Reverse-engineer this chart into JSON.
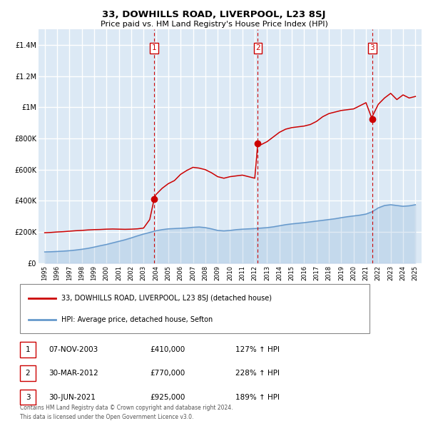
{
  "title": "33, DOWHILLS ROAD, LIVERPOOL, L23 8SJ",
  "subtitle": "Price paid vs. HM Land Registry's House Price Index (HPI)",
  "xlim": [
    1994.5,
    2025.5
  ],
  "ylim": [
    0,
    1500000
  ],
  "yticks": [
    0,
    200000,
    400000,
    600000,
    800000,
    1000000,
    1200000,
    1400000
  ],
  "ytick_labels": [
    "£0",
    "£200K",
    "£400K",
    "£600K",
    "£800K",
    "£1M",
    "£1.2M",
    "£1.4M"
  ],
  "xticks": [
    1995,
    1996,
    1997,
    1998,
    1999,
    2000,
    2001,
    2002,
    2003,
    2004,
    2005,
    2006,
    2007,
    2008,
    2009,
    2010,
    2011,
    2012,
    2013,
    2014,
    2015,
    2016,
    2017,
    2018,
    2019,
    2020,
    2021,
    2022,
    2023,
    2024,
    2025
  ],
  "background_color": "#dce9f5",
  "grid_color": "#ffffff",
  "sale_color": "#cc0000",
  "hpi_color": "#6699cc",
  "sale_dates": [
    2003.854,
    2012.247,
    2021.497
  ],
  "sale_prices": [
    410000,
    770000,
    925000
  ],
  "sale_labels": [
    "1",
    "2",
    "3"
  ],
  "vline_dates": [
    2003.854,
    2012.247,
    2021.497
  ],
  "legend_label_sale": "33, DOWHILLS ROAD, LIVERPOOL, L23 8SJ (detached house)",
  "legend_label_hpi": "HPI: Average price, detached house, Sefton",
  "table_rows": [
    {
      "num": "1",
      "date": "07-NOV-2003",
      "price": "£410,000",
      "hpi": "127% ↑ HPI"
    },
    {
      "num": "2",
      "date": "30-MAR-2012",
      "price": "£770,000",
      "hpi": "228% ↑ HPI"
    },
    {
      "num": "3",
      "date": "30-JUN-2021",
      "price": "£925,000",
      "hpi": "189% ↑ HPI"
    }
  ],
  "footer": "Contains HM Land Registry data © Crown copyright and database right 2024.\nThis data is licensed under the Open Government Licence v3.0.",
  "sale_line_data_x": [
    1995.0,
    1995.5,
    1996.0,
    1996.5,
    1997.0,
    1997.5,
    1998.0,
    1998.5,
    1999.0,
    1999.5,
    2000.0,
    2000.5,
    2001.0,
    2001.5,
    2002.0,
    2002.5,
    2003.0,
    2003.5,
    2003.854,
    2004.0,
    2004.5,
    2005.0,
    2005.5,
    2006.0,
    2006.5,
    2007.0,
    2007.5,
    2008.0,
    2008.5,
    2009.0,
    2009.5,
    2010.0,
    2010.5,
    2011.0,
    2011.5,
    2012.0,
    2012.247,
    2012.5,
    2013.0,
    2013.5,
    2014.0,
    2014.5,
    2015.0,
    2015.5,
    2016.0,
    2016.5,
    2017.0,
    2017.5,
    2018.0,
    2018.5,
    2019.0,
    2019.5,
    2020.0,
    2020.5,
    2021.0,
    2021.497,
    2021.5,
    2022.0,
    2022.5,
    2023.0,
    2023.5,
    2024.0,
    2024.5,
    2025.0
  ],
  "sale_line_data_y": [
    195000,
    197000,
    200000,
    202000,
    205000,
    208000,
    210000,
    213000,
    215000,
    216000,
    218000,
    219000,
    218000,
    217000,
    218000,
    220000,
    225000,
    280000,
    410000,
    440000,
    480000,
    510000,
    530000,
    570000,
    595000,
    615000,
    610000,
    600000,
    580000,
    555000,
    545000,
    555000,
    560000,
    565000,
    555000,
    545000,
    770000,
    760000,
    780000,
    810000,
    840000,
    860000,
    870000,
    875000,
    880000,
    890000,
    910000,
    940000,
    960000,
    970000,
    980000,
    985000,
    990000,
    1010000,
    1030000,
    925000,
    940000,
    1020000,
    1060000,
    1090000,
    1050000,
    1080000,
    1060000,
    1070000
  ],
  "hpi_line_data_x": [
    1995.0,
    1995.5,
    1996.0,
    1996.5,
    1997.0,
    1997.5,
    1998.0,
    1998.5,
    1999.0,
    1999.5,
    2000.0,
    2000.5,
    2001.0,
    2001.5,
    2002.0,
    2002.5,
    2003.0,
    2003.5,
    2004.0,
    2004.5,
    2005.0,
    2005.5,
    2006.0,
    2006.5,
    2007.0,
    2007.5,
    2008.0,
    2008.5,
    2009.0,
    2009.5,
    2010.0,
    2010.5,
    2011.0,
    2011.5,
    2012.0,
    2012.5,
    2013.0,
    2013.5,
    2014.0,
    2014.5,
    2015.0,
    2015.5,
    2016.0,
    2016.5,
    2017.0,
    2017.5,
    2018.0,
    2018.5,
    2019.0,
    2019.5,
    2020.0,
    2020.5,
    2021.0,
    2021.5,
    2022.0,
    2022.5,
    2023.0,
    2023.5,
    2024.0,
    2024.5,
    2025.0
  ],
  "hpi_line_data_y": [
    72000,
    73000,
    75000,
    77000,
    80000,
    84000,
    89000,
    95000,
    103000,
    112000,
    120000,
    130000,
    140000,
    150000,
    162000,
    175000,
    187000,
    197000,
    208000,
    215000,
    220000,
    222000,
    224000,
    226000,
    230000,
    232000,
    228000,
    220000,
    210000,
    207000,
    210000,
    215000,
    218000,
    220000,
    222000,
    225000,
    228000,
    233000,
    240000,
    247000,
    252000,
    256000,
    260000,
    265000,
    270000,
    275000,
    280000,
    285000,
    292000,
    298000,
    303000,
    308000,
    315000,
    330000,
    355000,
    370000,
    375000,
    370000,
    365000,
    368000,
    375000
  ]
}
